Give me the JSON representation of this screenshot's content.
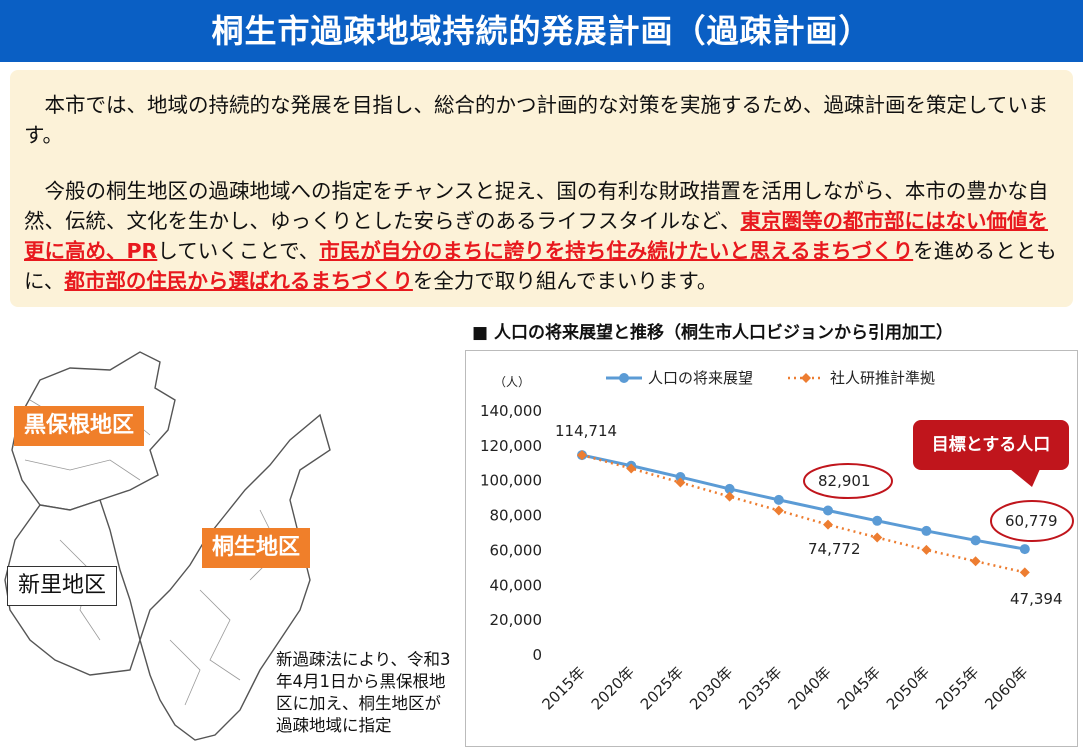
{
  "title": "桐生市過疎地域持続的発展計画（過疎計画）",
  "intro": {
    "para1": "本市では、地域の持続的な発展を目指し、総合的かつ計画的な対策を実施するため、過疎計画を策定しています。",
    "para2": [
      "今般の桐生地区の過疎地域への指定をチャンスと捉え、国の有利な財政措置を活用しながら、本市の豊かな自然、伝統、文化を生かし、ゆっくりとした安らぎのあるライフスタイルなど、",
      "東京圏等の都市部にはない価値を更に高め、PR",
      "していくことで、",
      "市民が自分のまちに誇りを持ち住み続けたいと思えるまちづくり",
      "を進めるとともに、",
      "都市部の住民から選ばれるまちづくり",
      "を全力で取り組んでまいります。"
    ]
  },
  "map": {
    "labels": [
      "黒保根地区",
      "桐生地区",
      "新里地区"
    ],
    "note": "新過疎法により、令和3年4月1日から黒保根地区に加え、桐生地区が過疎地域に指定",
    "colors": {
      "label_bg": "#f07f2a"
    }
  },
  "chart_section_title": "■ 人口の将来展望と推移（桐生市人口ビジョンから引用加工）",
  "target_label": "目標とする人口",
  "chart_data": {
    "type": "line",
    "unit_label": "（人）",
    "categories": [
      "2015年",
      "2020年",
      "2025年",
      "2030年",
      "2035年",
      "2040年",
      "2045年",
      "2050年",
      "2055年",
      "2060年"
    ],
    "series": [
      {
        "name": "人口の将来展望",
        "color": "#5b9bd5",
        "style": "solid-circle",
        "values": [
          114714,
          108600,
          102100,
          95300,
          89000,
          82901,
          77000,
          71200,
          65800,
          60779
        ]
      },
      {
        "name": "社人研推計準拠",
        "color": "#ed7d31",
        "style": "dotted-diamond",
        "values": [
          114714,
          107000,
          99000,
          90900,
          82900,
          74772,
          67400,
          60300,
          53800,
          47394
        ]
      }
    ],
    "ylim": [
      0,
      140000
    ],
    "yticks": [
      "0",
      "20,000",
      "40,000",
      "60,000",
      "80,000",
      "100,000",
      "120,000",
      "140,000"
    ],
    "annotations": [
      "114,714",
      "82,901",
      "74,772",
      "60,779",
      "47,394"
    ],
    "legend": "top-center",
    "grid": false
  }
}
